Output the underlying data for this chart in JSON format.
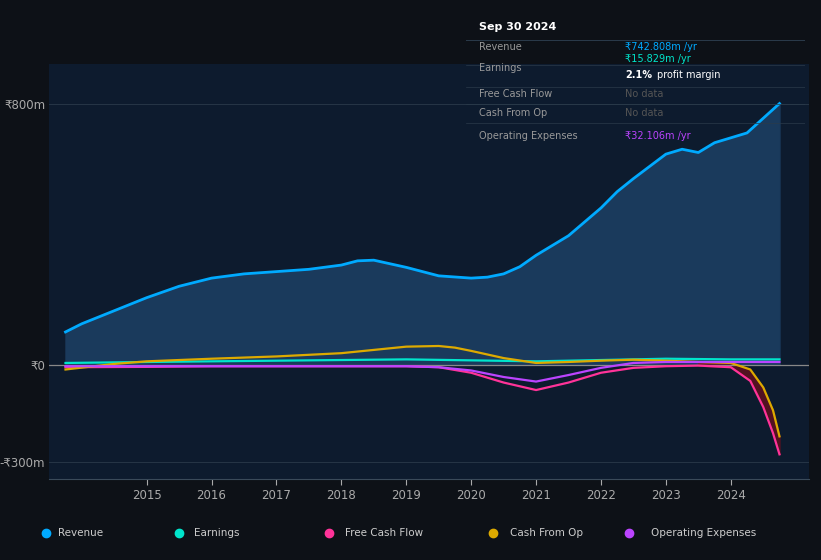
{
  "bg_color": "#0d1117",
  "plot_bg_color": "#0d1b2e",
  "ylim": [
    -350,
    920
  ],
  "yticks_vals": [
    -300,
    0,
    800
  ],
  "ytick_labels": [
    "-₹300m",
    "₹0",
    "₹800m"
  ],
  "xticks": [
    2015,
    2016,
    2017,
    2018,
    2019,
    2020,
    2021,
    2022,
    2023,
    2024
  ],
  "xlim_min": 2013.5,
  "xlim_max": 2025.2,
  "revenue_color": "#00aaff",
  "revenue_fill": "#1a3a5c",
  "earnings_color": "#00e5cc",
  "fcf_color": "#ff3399",
  "cashop_color": "#ddaa00",
  "opex_color": "#bb44ff",
  "info_date": "Sep 30 2024",
  "info_rows": [
    {
      "label": "Revenue",
      "value": "₹742.808m /yr",
      "vcolor": "#00aaff",
      "has_sub": false
    },
    {
      "label": "Earnings",
      "value": "₹15.829m /yr",
      "vcolor": "#00e5cc",
      "has_sub": true,
      "sub": "2.1% profit margin"
    },
    {
      "label": "Free Cash Flow",
      "value": "No data",
      "vcolor": "#555555",
      "has_sub": false
    },
    {
      "label": "Cash From Op",
      "value": "No data",
      "vcolor": "#555555",
      "has_sub": false
    },
    {
      "label": "Operating Expenses",
      "value": "₹32.106m /yr",
      "vcolor": "#bb44ff",
      "has_sub": false
    }
  ],
  "legend_labels": [
    "Revenue",
    "Earnings",
    "Free Cash Flow",
    "Cash From Op",
    "Operating Expenses"
  ],
  "legend_colors": [
    "#00aaff",
    "#00e5cc",
    "#ff3399",
    "#ddaa00",
    "#bb44ff"
  ]
}
